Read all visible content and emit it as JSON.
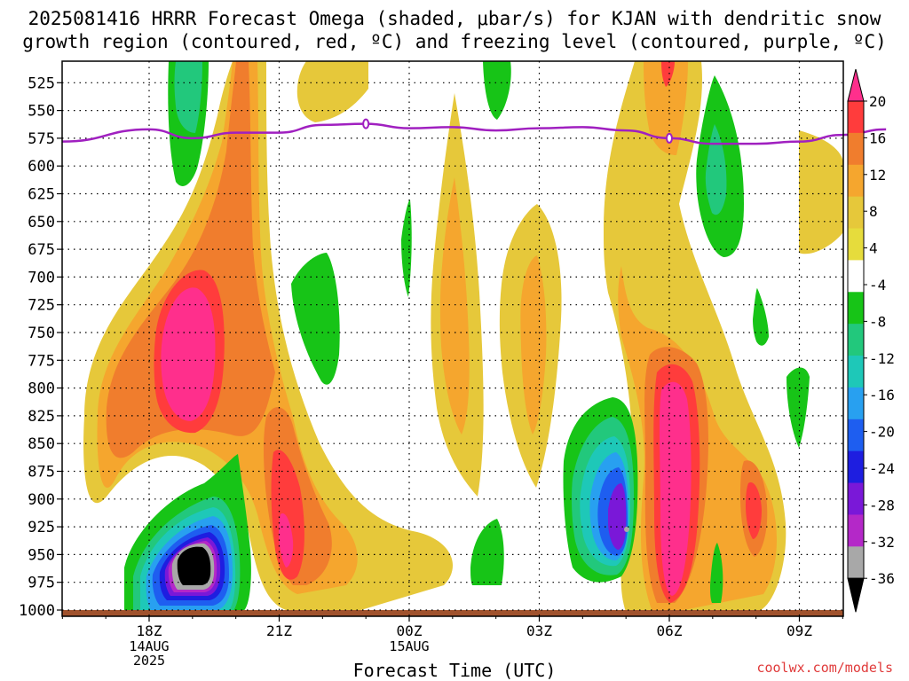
{
  "title": "2025081416 HRRR Forecast Omega (shaded, μbar/s) for KJAN with dendritic snow\ngrowth region (contoured, red, ºC) and freezing level (contoured, purple, ºC)",
  "footer": "coolwx.com/models",
  "chart_data": {
    "type": "heatmap",
    "xlabel": "Forecast Time (UTC)",
    "ylabel": "",
    "x_ticks": [
      {
        "label": "18Z",
        "sub": [
          "14AUG",
          "2025"
        ]
      },
      {
        "label": "21Z",
        "sub": []
      },
      {
        "label": "00Z",
        "sub": [
          "15AUG"
        ]
      },
      {
        "label": "03Z",
        "sub": []
      },
      {
        "label": "06Z",
        "sub": []
      },
      {
        "label": "09Z",
        "sub": []
      }
    ],
    "y_ticks": [
      "525",
      "550",
      "575",
      "600",
      "625",
      "650",
      "675",
      "700",
      "725",
      "750",
      "775",
      "800",
      "825",
      "850",
      "875",
      "900",
      "925",
      "950",
      "975",
      "1000"
    ],
    "ylim": [
      1000,
      500
    ],
    "colorbar": {
      "labels": [
        "20",
        "16",
        "12",
        "8",
        "4",
        "-4",
        "-8",
        "-12",
        "-16",
        "-20",
        "-24",
        "-28",
        "-32",
        "-36"
      ],
      "colors": [
        "#ff2f8c",
        "#ff3c3c",
        "#f07d2d",
        "#f5a62e",
        "#e6c83a",
        "#e6dc3c",
        "#ffffff",
        "#17c417",
        "#22c87c",
        "#1ec8b8",
        "#28a0f0",
        "#1e5ef0",
        "#1e1ee0",
        "#7a18d8",
        "#b428c8",
        "#a8a8a8",
        "#000000"
      ]
    },
    "freezing_level": {
      "color": "#a020c0",
      "hours": [
        -2,
        0,
        1,
        2,
        3,
        4,
        5,
        6,
        7,
        8,
        9,
        10,
        11,
        12,
        13,
        14,
        15,
        16,
        17
      ],
      "pressure": [
        578,
        567,
        575,
        570,
        570,
        563,
        562,
        566,
        565,
        568,
        566,
        565,
        568,
        575,
        580,
        580,
        578,
        572,
        567
      ]
    },
    "grid": true
  }
}
